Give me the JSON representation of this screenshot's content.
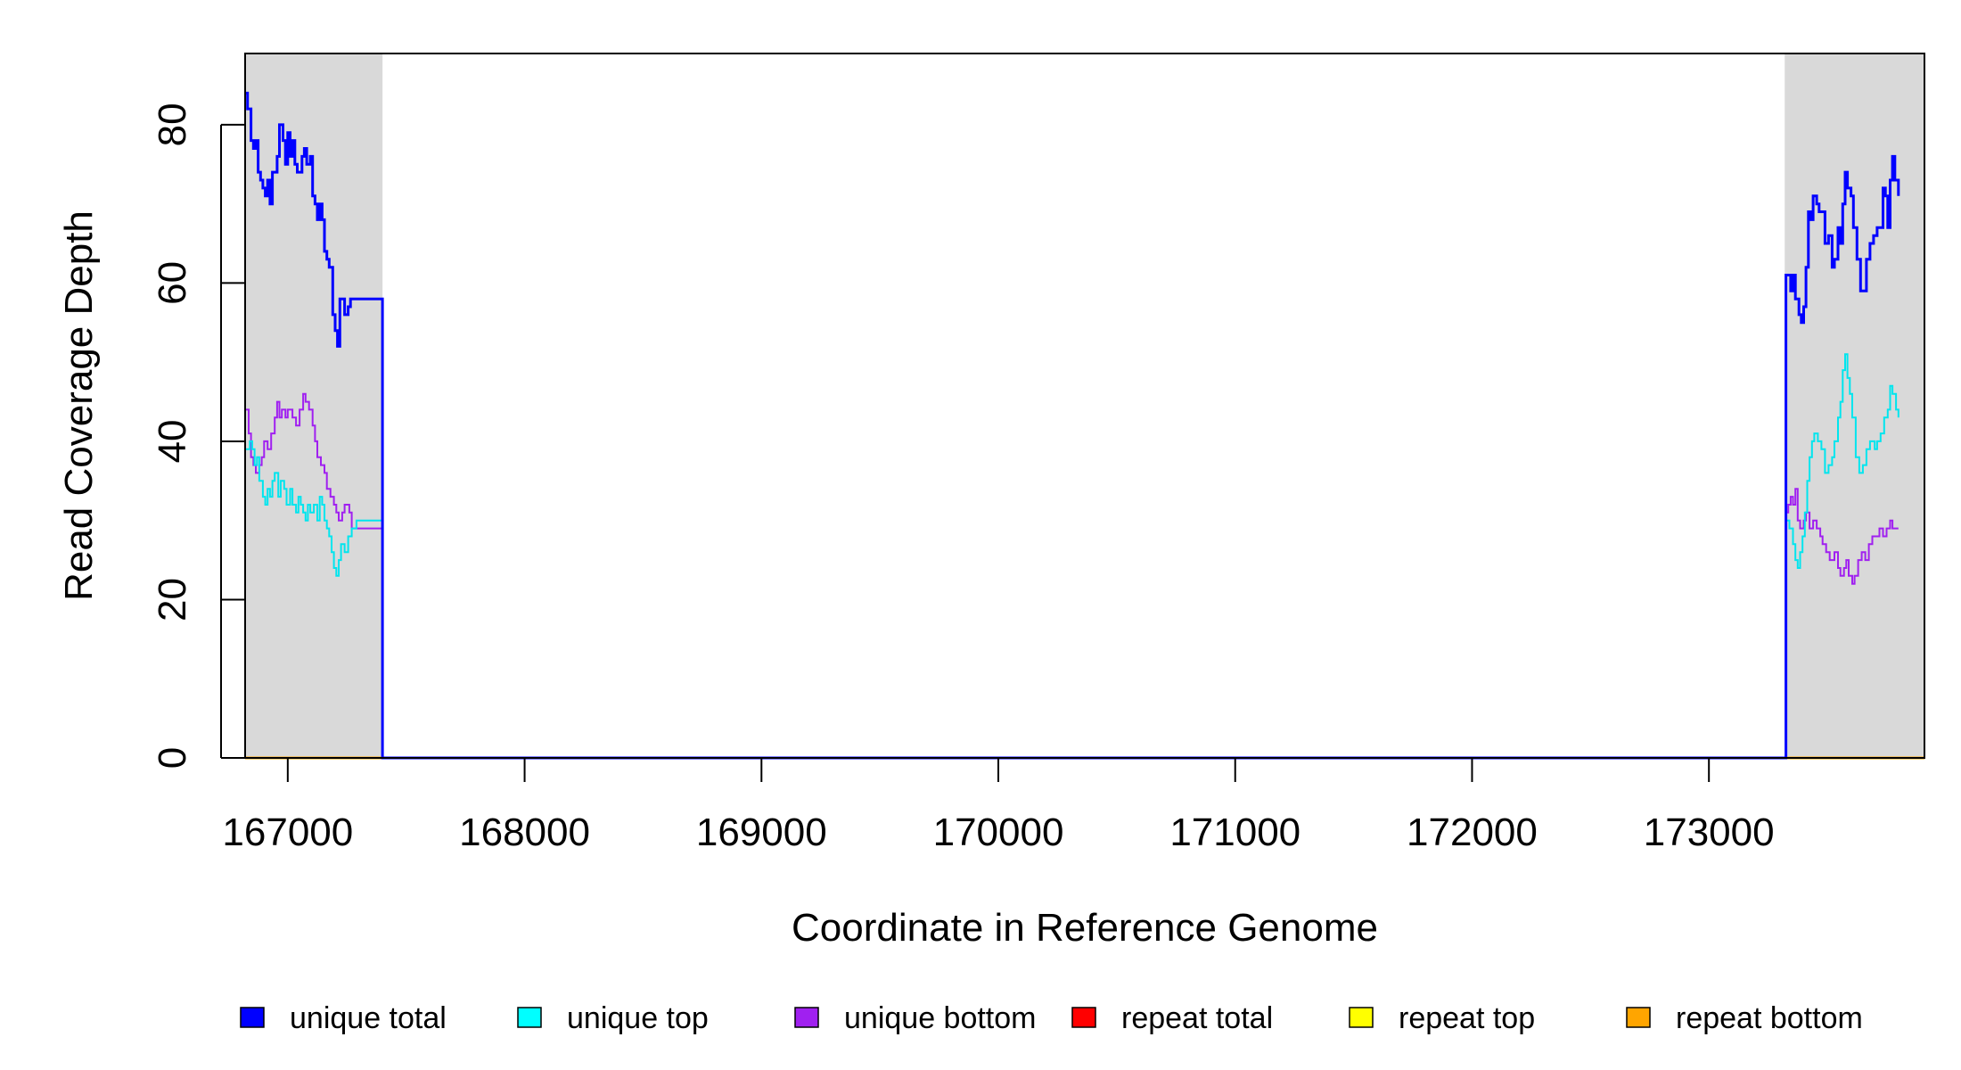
{
  "chart_data": {
    "type": "line",
    "xlabel": "Coordinate in Reference Genome",
    "ylabel": "Read Coverage Depth",
    "xlim": [
      166820,
      173910
    ],
    "ylim": [
      0,
      89
    ],
    "x_ticks": [
      167000,
      168000,
      169000,
      170000,
      171000,
      172000,
      173000
    ],
    "y_ticks": [
      0,
      20,
      40,
      60,
      80
    ],
    "shaded_regions": [
      {
        "from": 166820,
        "to": 167400,
        "color": "#d9d9d9"
      },
      {
        "from": 173320,
        "to": 173910,
        "color": "#d9d9d9"
      }
    ],
    "series": [
      {
        "name": "unique total",
        "color": "#0000ff",
        "width": 3,
        "points": [
          [
            166820,
            84
          ],
          [
            166830,
            82
          ],
          [
            166845,
            78
          ],
          [
            166855,
            77
          ],
          [
            166865,
            78
          ],
          [
            166875,
            74
          ],
          [
            166885,
            73
          ],
          [
            166895,
            72
          ],
          [
            166905,
            71
          ],
          [
            166915,
            73
          ],
          [
            166925,
            70
          ],
          [
            166935,
            74
          ],
          [
            166955,
            76
          ],
          [
            166965,
            80
          ],
          [
            166980,
            78
          ],
          [
            166990,
            75
          ],
          [
            167000,
            79
          ],
          [
            167010,
            76
          ],
          [
            167020,
            78
          ],
          [
            167030,
            75
          ],
          [
            167040,
            74
          ],
          [
            167060,
            76
          ],
          [
            167070,
            77
          ],
          [
            167080,
            75
          ],
          [
            167095,
            76
          ],
          [
            167105,
            71
          ],
          [
            167115,
            70
          ],
          [
            167125,
            68
          ],
          [
            167135,
            70
          ],
          [
            167145,
            68
          ],
          [
            167155,
            64
          ],
          [
            167165,
            63
          ],
          [
            167175,
            62
          ],
          [
            167190,
            56
          ],
          [
            167200,
            54
          ],
          [
            167210,
            52
          ],
          [
            167220,
            58
          ],
          [
            167240,
            56
          ],
          [
            167255,
            57
          ],
          [
            167265,
            58
          ],
          [
            167280,
            58
          ],
          [
            167390,
            58
          ],
          [
            167400,
            0
          ],
          [
            173320,
            0
          ],
          [
            173325,
            61
          ],
          [
            173345,
            59
          ],
          [
            173355,
            61
          ],
          [
            173365,
            58
          ],
          [
            173380,
            56
          ],
          [
            173390,
            55
          ],
          [
            173400,
            57
          ],
          [
            173410,
            62
          ],
          [
            173420,
            69
          ],
          [
            173430,
            68
          ],
          [
            173440,
            71
          ],
          [
            173455,
            70
          ],
          [
            173465,
            69
          ],
          [
            173490,
            65
          ],
          [
            173505,
            66
          ],
          [
            173520,
            62
          ],
          [
            173530,
            63
          ],
          [
            173545,
            67
          ],
          [
            173555,
            65
          ],
          [
            173565,
            70
          ],
          [
            173575,
            74
          ],
          [
            173585,
            72
          ],
          [
            173600,
            71
          ],
          [
            173610,
            67
          ],
          [
            173625,
            63
          ],
          [
            173640,
            59
          ],
          [
            173665,
            63
          ],
          [
            173680,
            65
          ],
          [
            173695,
            66
          ],
          [
            173710,
            67
          ],
          [
            173735,
            72
          ],
          [
            173745,
            71
          ],
          [
            173755,
            67
          ],
          [
            173765,
            73
          ],
          [
            173775,
            76
          ],
          [
            173785,
            73
          ],
          [
            173800,
            71
          ]
        ]
      },
      {
        "name": "unique top",
        "color": "#00e5ee",
        "width": 2,
        "points": [
          [
            166820,
            39
          ],
          [
            166840,
            40
          ],
          [
            166850,
            39
          ],
          [
            166860,
            37
          ],
          [
            166870,
            38
          ],
          [
            166880,
            35
          ],
          [
            166895,
            33
          ],
          [
            166905,
            32
          ],
          [
            166915,
            34
          ],
          [
            166925,
            33
          ],
          [
            166935,
            35
          ],
          [
            166945,
            36
          ],
          [
            166960,
            33
          ],
          [
            166970,
            35
          ],
          [
            166985,
            34
          ],
          [
            166995,
            32
          ],
          [
            167010,
            34
          ],
          [
            167020,
            32
          ],
          [
            167035,
            31
          ],
          [
            167045,
            33
          ],
          [
            167055,
            32
          ],
          [
            167065,
            31
          ],
          [
            167075,
            30
          ],
          [
            167085,
            32
          ],
          [
            167095,
            31
          ],
          [
            167110,
            32
          ],
          [
            167125,
            30
          ],
          [
            167135,
            33
          ],
          [
            167145,
            32
          ],
          [
            167155,
            30
          ],
          [
            167165,
            29
          ],
          [
            167175,
            28
          ],
          [
            167185,
            26
          ],
          [
            167195,
            24
          ],
          [
            167205,
            23
          ],
          [
            167215,
            25
          ],
          [
            167225,
            27
          ],
          [
            167240,
            26
          ],
          [
            167255,
            28
          ],
          [
            167270,
            29
          ],
          [
            167290,
            30
          ],
          [
            167400,
            0
          ],
          [
            173320,
            0
          ],
          [
            173325,
            30
          ],
          [
            173340,
            29
          ],
          [
            173355,
            27
          ],
          [
            173365,
            25
          ],
          [
            173375,
            24
          ],
          [
            173385,
            26
          ],
          [
            173395,
            28
          ],
          [
            173405,
            31
          ],
          [
            173415,
            35
          ],
          [
            173425,
            38
          ],
          [
            173435,
            40
          ],
          [
            173445,
            41
          ],
          [
            173460,
            40
          ],
          [
            173475,
            39
          ],
          [
            173490,
            36
          ],
          [
            173505,
            37
          ],
          [
            173520,
            38
          ],
          [
            173530,
            40
          ],
          [
            173545,
            43
          ],
          [
            173555,
            45
          ],
          [
            173565,
            49
          ],
          [
            173575,
            51
          ],
          [
            173585,
            48
          ],
          [
            173595,
            46
          ],
          [
            173605,
            43
          ],
          [
            173620,
            38
          ],
          [
            173635,
            36
          ],
          [
            173650,
            37
          ],
          [
            173665,
            39
          ],
          [
            173680,
            40
          ],
          [
            173700,
            39
          ],
          [
            173710,
            40
          ],
          [
            173725,
            41
          ],
          [
            173740,
            43
          ],
          [
            173755,
            44
          ],
          [
            173765,
            47
          ],
          [
            173775,
            46
          ],
          [
            173790,
            44
          ],
          [
            173800,
            43
          ]
        ]
      },
      {
        "name": "unique bottom",
        "color": "#a020f0",
        "width": 2,
        "points": [
          [
            166820,
            44
          ],
          [
            166835,
            41
          ],
          [
            166845,
            38
          ],
          [
            166855,
            37
          ],
          [
            166865,
            36
          ],
          [
            166880,
            37
          ],
          [
            166890,
            38
          ],
          [
            166900,
            40
          ],
          [
            166915,
            39
          ],
          [
            166930,
            41
          ],
          [
            166945,
            43
          ],
          [
            166955,
            45
          ],
          [
            166965,
            43
          ],
          [
            166975,
            44
          ],
          [
            166990,
            43
          ],
          [
            167000,
            44
          ],
          [
            167020,
            43
          ],
          [
            167035,
            42
          ],
          [
            167050,
            44
          ],
          [
            167065,
            46
          ],
          [
            167075,
            45
          ],
          [
            167090,
            44
          ],
          [
            167105,
            42
          ],
          [
            167115,
            40
          ],
          [
            167125,
            38
          ],
          [
            167140,
            37
          ],
          [
            167155,
            36
          ],
          [
            167165,
            34
          ],
          [
            167180,
            33
          ],
          [
            167195,
            32
          ],
          [
            167205,
            31
          ],
          [
            167215,
            30
          ],
          [
            167230,
            31
          ],
          [
            167240,
            32
          ],
          [
            167260,
            31
          ],
          [
            167270,
            29
          ],
          [
            167290,
            29
          ],
          [
            167400,
            0
          ],
          [
            173320,
            0
          ],
          [
            173325,
            31
          ],
          [
            173335,
            32
          ],
          [
            173345,
            33
          ],
          [
            173355,
            32
          ],
          [
            173365,
            34
          ],
          [
            173375,
            30
          ],
          [
            173385,
            29
          ],
          [
            173400,
            30
          ],
          [
            173410,
            31
          ],
          [
            173425,
            29
          ],
          [
            173440,
            30
          ],
          [
            173455,
            29
          ],
          [
            173470,
            28
          ],
          [
            173480,
            27
          ],
          [
            173495,
            26
          ],
          [
            173510,
            25
          ],
          [
            173530,
            26
          ],
          [
            173545,
            24
          ],
          [
            173555,
            23
          ],
          [
            173570,
            24
          ],
          [
            173580,
            25
          ],
          [
            173590,
            23
          ],
          [
            173605,
            22
          ],
          [
            173615,
            23
          ],
          [
            173630,
            25
          ],
          [
            173645,
            26
          ],
          [
            173660,
            25
          ],
          [
            173675,
            27
          ],
          [
            173690,
            28
          ],
          [
            173705,
            28
          ],
          [
            173720,
            29
          ],
          [
            173735,
            28
          ],
          [
            173750,
            29
          ],
          [
            173765,
            30
          ],
          [
            173775,
            29
          ],
          [
            173800,
            29
          ]
        ]
      },
      {
        "name": "repeat total",
        "color": "#ff0000",
        "width": 2,
        "points": [
          [
            166820,
            0
          ],
          [
            173910,
            0
          ]
        ]
      },
      {
        "name": "repeat top",
        "color": "#ffff00",
        "width": 2,
        "points": [
          [
            166820,
            0
          ],
          [
            173910,
            0
          ]
        ]
      },
      {
        "name": "repeat bottom",
        "color": "#ffa500",
        "width": 3,
        "points": [
          [
            166820,
            0
          ],
          [
            173910,
            0
          ]
        ]
      }
    ],
    "legend": {
      "placement": "bottom",
      "entries": [
        {
          "label": "unique total",
          "color": "#0000ff"
        },
        {
          "label": "unique top",
          "color": "#00ffff"
        },
        {
          "label": "unique bottom",
          "color": "#a020f0"
        },
        {
          "label": "repeat total",
          "color": "#ff0000"
        },
        {
          "label": "repeat top",
          "color": "#ffff00"
        },
        {
          "label": "repeat bottom",
          "color": "#ffa500"
        }
      ]
    }
  }
}
